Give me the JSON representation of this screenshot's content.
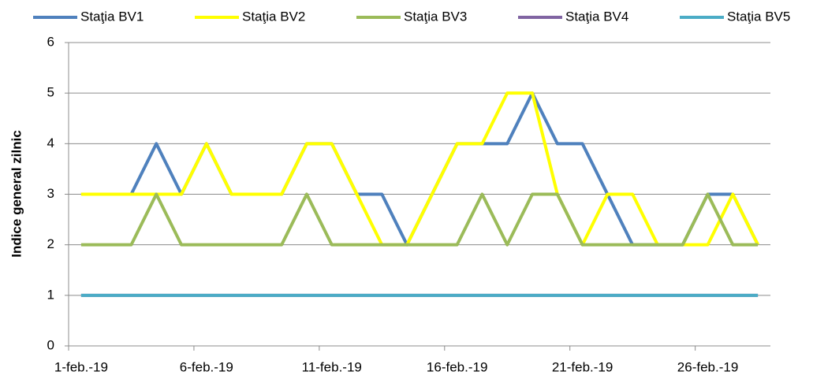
{
  "chart_data": {
    "type": "line",
    "y_label": "Indice general zilnic",
    "categories": [
      "1-feb.-19",
      null,
      null,
      null,
      null,
      "6-feb.-19",
      null,
      null,
      null,
      null,
      "11-feb.-19",
      null,
      null,
      null,
      null,
      "16-feb.-19",
      null,
      null,
      null,
      null,
      "21-feb.-19",
      null,
      null,
      null,
      null,
      "26-feb.-19",
      null,
      null
    ],
    "series": [
      {
        "name": "Staţia BV1",
        "color": "#4f81bd",
        "values": [
          3,
          3,
          3,
          4,
          3,
          4,
          3,
          3,
          3,
          4,
          4,
          3,
          3,
          2,
          3,
          4,
          4,
          4,
          5,
          4,
          4,
          3,
          2,
          2,
          2,
          3,
          3,
          2
        ]
      },
      {
        "name": "Staţia BV2",
        "color": "#ffff00",
        "values": [
          3,
          3,
          3,
          3,
          3,
          4,
          3,
          3,
          3,
          4,
          4,
          3,
          2,
          2,
          3,
          4,
          4,
          5,
          5,
          3,
          2,
          3,
          3,
          2,
          2,
          2,
          3,
          2
        ]
      },
      {
        "name": "Staţia BV3",
        "color": "#9bbb59",
        "values": [
          2,
          2,
          2,
          3,
          2,
          2,
          2,
          2,
          2,
          3,
          2,
          2,
          2,
          2,
          2,
          2,
          3,
          2,
          3,
          3,
          2,
          2,
          2,
          2,
          2,
          3,
          2,
          2
        ]
      },
      {
        "name": "Staţia BV4",
        "color": "#8064a2",
        "values": [
          1,
          1,
          1,
          1,
          1,
          1,
          1,
          1,
          1,
          1,
          1,
          1,
          1,
          1,
          1,
          1,
          1,
          1,
          1,
          1,
          1,
          1,
          1,
          1,
          1,
          1,
          1,
          1
        ]
      },
      {
        "name": "Staţia BV5",
        "color": "#4bacc6",
        "values": [
          1,
          1,
          1,
          1,
          1,
          1,
          1,
          1,
          1,
          1,
          1,
          1,
          1,
          1,
          1,
          1,
          1,
          1,
          1,
          1,
          1,
          1,
          1,
          1,
          1,
          1,
          1,
          1
        ]
      }
    ],
    "ylim": [
      0,
      6
    ],
    "yticks": [
      0,
      1,
      2,
      3,
      4,
      5,
      6
    ],
    "grid": true,
    "legend": "top"
  }
}
